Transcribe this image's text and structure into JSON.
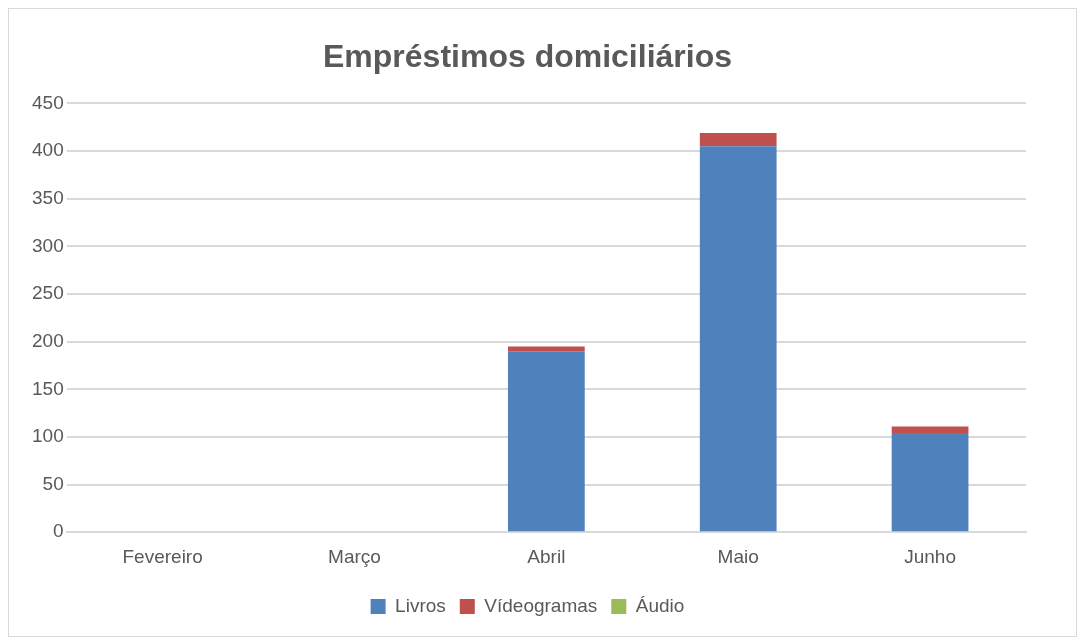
{
  "chart_data": {
    "type": "bar",
    "title": "Empréstimos domiciliários",
    "categories": [
      "Fevereiro",
      "Março",
      "Abril",
      "Maio",
      "Junho"
    ],
    "stacked": true,
    "series": [
      {
        "name": "Livros",
        "color": "#4f81bd",
        "values": [
          0,
          0,
          190,
          405,
          104
        ]
      },
      {
        "name": "Vídeogramas",
        "color": "#c0504d",
        "values": [
          0,
          0,
          5,
          14,
          7
        ]
      },
      {
        "name": "Áudio",
        "color": "#9bbb59",
        "values": [
          0,
          0,
          0,
          0,
          0
        ]
      }
    ],
    "ylim": [
      0,
      450
    ],
    "yticks": [
      0,
      50,
      100,
      150,
      200,
      250,
      300,
      350,
      400,
      450
    ],
    "grid": "y",
    "legend": "bottom"
  }
}
